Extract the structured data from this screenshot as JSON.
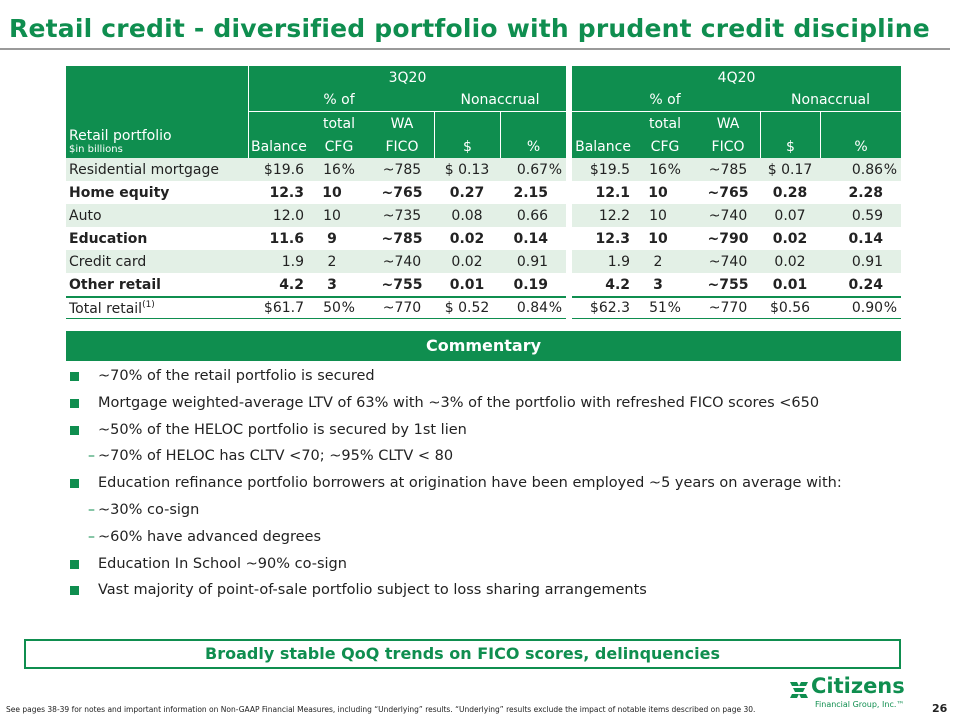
{
  "title": "Retail credit - diversified portfolio with prudent credit discipline",
  "table": {
    "row_label_title": "Retail portfolio",
    "row_label_subtitle": "$in billions",
    "periods": [
      "3Q20",
      "4Q20"
    ],
    "col_balance": "Balance",
    "col_pct_top": "% of",
    "col_pct_bottom": "total",
    "col_pct_bottom2": "CFG",
    "col_fico_top": "WA",
    "col_fico_bottom": "FICO",
    "col_nonaccrual": "Nonaccrual",
    "col_dollar": "$",
    "col_percent": "%",
    "rows": [
      {
        "label": "Residential mortgage",
        "bold": false,
        "q3": {
          "bal": "$19.6",
          "pct": "16",
          "pct_sign": "%",
          "fico": "~785",
          "na_d": "$ 0.13",
          "na_p": "0.67",
          "na_p_sign": "%"
        },
        "q4": {
          "bal": "$19.5",
          "pct": "16",
          "pct_sign": "%",
          "fico": "~785",
          "na_d": "$  0.17",
          "na_p": "0.86",
          "na_p_sign": "%"
        }
      },
      {
        "label": "Home equity",
        "bold": true,
        "q3": {
          "bal": "12.3",
          "pct": "10",
          "pct_sign": "",
          "fico": "~765",
          "na_d": "0.27",
          "na_p": "2.15",
          "na_p_sign": ""
        },
        "q4": {
          "bal": "12.1",
          "pct": "10",
          "pct_sign": "",
          "fico": "~765",
          "na_d": "0.28",
          "na_p": "2.28",
          "na_p_sign": ""
        }
      },
      {
        "label": "Auto",
        "bold": false,
        "q3": {
          "bal": "12.0",
          "pct": "10",
          "pct_sign": "",
          "fico": "~735",
          "na_d": "0.08",
          "na_p": "0.66",
          "na_p_sign": ""
        },
        "q4": {
          "bal": "12.2",
          "pct": "10",
          "pct_sign": "",
          "fico": "~740",
          "na_d": "0.07",
          "na_p": "0.59",
          "na_p_sign": ""
        }
      },
      {
        "label": "Education",
        "bold": true,
        "q3": {
          "bal": "11.6",
          "pct": "9",
          "pct_sign": "",
          "fico": "~785",
          "na_d": "0.02",
          "na_p": "0.14",
          "na_p_sign": ""
        },
        "q4": {
          "bal": "12.3",
          "pct": "10",
          "pct_sign": "",
          "fico": "~790",
          "na_d": "0.02",
          "na_p": "0.14",
          "na_p_sign": ""
        }
      },
      {
        "label": "Credit card",
        "bold": false,
        "q3": {
          "bal": "1.9",
          "pct": "2",
          "pct_sign": "",
          "fico": "~740",
          "na_d": "0.02",
          "na_p": "0.91",
          "na_p_sign": ""
        },
        "q4": {
          "bal": "1.9",
          "pct": "2",
          "pct_sign": "",
          "fico": "~740",
          "na_d": "0.02",
          "na_p": "0.91",
          "na_p_sign": ""
        }
      },
      {
        "label": "Other retail",
        "bold": true,
        "q3": {
          "bal": "4.2",
          "pct": "3",
          "pct_sign": "",
          "fico": "~755",
          "na_d": "0.01",
          "na_p": "0.19",
          "na_p_sign": ""
        },
        "q4": {
          "bal": "4.2",
          "pct": "3",
          "pct_sign": "",
          "fico": "~755",
          "na_d": "0.01",
          "na_p": "0.24",
          "na_p_sign": ""
        }
      }
    ],
    "total": {
      "label": "Total retail",
      "footnote_mark": "(1)",
      "q3": {
        "bal": "$61.7",
        "pct": "50",
        "pct_sign": "%",
        "fico": "~770",
        "na_d": "$ 0.52",
        "na_p": "0.84",
        "na_p_sign": "%"
      },
      "q4": {
        "bal": "$62.3",
        "pct": "51",
        "pct_sign": "%",
        "fico": "~770",
        "na_d": "$0.56",
        "na_p": "0.90",
        "na_p_sign": "%"
      }
    }
  },
  "commentary": {
    "heading": "Commentary",
    "items": [
      {
        "level": 1,
        "text": "~70% of the retail portfolio is secured"
      },
      {
        "level": 1,
        "text": "Mortgage weighted-average LTV of 63% with ~3% of the portfolio with refreshed FICO scores <650"
      },
      {
        "level": 1,
        "text": "~50% of the HELOC portfolio is secured by 1st lien"
      },
      {
        "level": 2,
        "text": "~70% of HELOC has CLTV  <70; ~95% CLTV < 80"
      },
      {
        "level": 1,
        "text": "Education refinance portfolio borrowers at origination have been employed ~5 years on average with:"
      },
      {
        "level": 2,
        "text": "~30% co-sign"
      },
      {
        "level": 2,
        "text": "~60% have advanced degrees"
      },
      {
        "level": 1,
        "text": "Education In School ~90% co-sign"
      },
      {
        "level": 1,
        "text": "Vast majority of point-of-sale portfolio subject to loss sharing arrangements"
      }
    ],
    "dash": "–"
  },
  "callout": "Broadly stable QoQ trends on FICO scores, delinquencies",
  "footnote": "See pages 38-39 for notes and important information on Non-GAAP Financial Measures, including “Underlying” results. “Underlying” results exclude the impact of notable items described on page 30.",
  "logo": {
    "name": "Citizens",
    "sub": "Financial Group, Inc.™"
  },
  "page_number": "26",
  "colors": {
    "brand_green": "#0f8e4f",
    "row_shade": "#e3f0e6"
  }
}
